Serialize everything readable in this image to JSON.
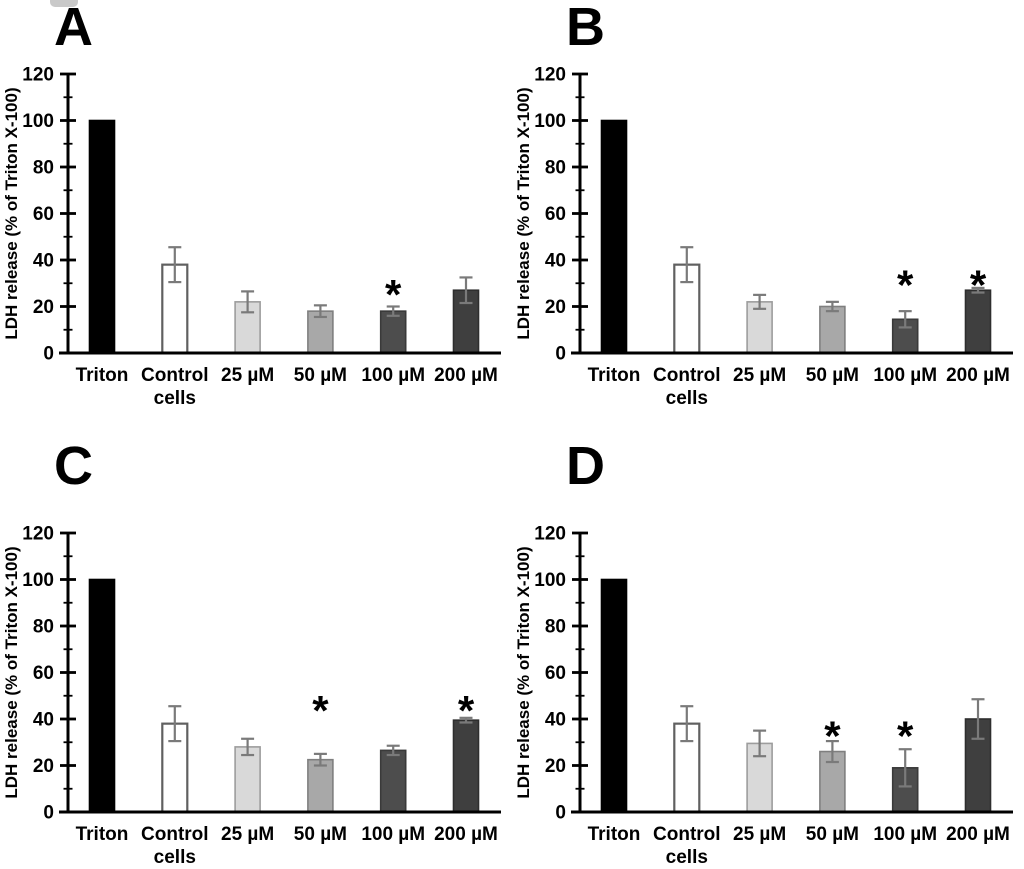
{
  "figure": {
    "background": "#ffffff",
    "panel_letters": [
      "A",
      "B",
      "C",
      "D"
    ]
  },
  "chart_data": [
    {
      "type": "bar",
      "panel_label": "A",
      "ylabel": "LDH release (% of Triton X-100)",
      "categories": [
        "Triton",
        "Control\ncells",
        "25 µM",
        "50 µM",
        "100 µM",
        "200 µM"
      ],
      "values": [
        100,
        38,
        22,
        18,
        18,
        27
      ],
      "errors": [
        0,
        7.5,
        4.5,
        2.5,
        2,
        5.5
      ],
      "significance_asterisks": [
        null,
        null,
        null,
        null,
        28,
        null
      ],
      "ylim": [
        0,
        120
      ],
      "ytick_step": 20,
      "ytick_minor_step": 10,
      "grid": false,
      "legend": false
    },
    {
      "type": "bar",
      "panel_label": "B",
      "ylabel": "LDH release (% of Triton X-100)",
      "categories": [
        "Triton",
        "Control\ncells",
        "25 µM",
        "50 µM",
        "100 µM",
        "200 µM"
      ],
      "values": [
        100,
        38,
        22,
        20,
        14.5,
        27
      ],
      "errors": [
        0,
        7.5,
        3,
        2,
        3.5,
        1
      ],
      "significance_asterisks": [
        null,
        null,
        null,
        null,
        32,
        32
      ],
      "ylim": [
        0,
        120
      ],
      "ytick_step": 20,
      "ytick_minor_step": 10,
      "grid": false,
      "legend": false
    },
    {
      "type": "bar",
      "panel_label": "C",
      "ylabel": "LDH release (% of Triton X-100)",
      "categories": [
        "Triton",
        "Control\ncells",
        "25 µM",
        "50 µM",
        "100 µM",
        "200 µM"
      ],
      "values": [
        100,
        38,
        28,
        22.5,
        26.5,
        39.5
      ],
      "errors": [
        0,
        7.5,
        3.5,
        2.5,
        2,
        1
      ],
      "significance_asterisks": [
        null,
        null,
        null,
        46.5,
        null,
        46.5
      ],
      "ylim": [
        0,
        120
      ],
      "ytick_step": 20,
      "ytick_minor_step": 10,
      "grid": false,
      "legend": false
    },
    {
      "type": "bar",
      "panel_label": "D",
      "ylabel": "LDH release (% of Triton X-100)",
      "categories": [
        "Triton",
        "Control\ncells",
        "25 µM",
        "50 µM",
        "100 µM",
        "200 µM"
      ],
      "values": [
        100,
        38,
        29.5,
        26,
        19,
        40
      ],
      "errors": [
        0,
        7.5,
        5.5,
        4.5,
        8,
        8.5
      ],
      "significance_asterisks": [
        null,
        null,
        null,
        35.5,
        35.5,
        null
      ],
      "ylim": [
        0,
        120
      ],
      "ytick_step": 20,
      "ytick_minor_step": 10,
      "grid": false,
      "legend": false
    }
  ],
  "style": {
    "sig_marker": "*",
    "bar_fills": [
      "#000000",
      "#ffffff",
      "#d9d9d9",
      "#a8a8a8",
      "#4d4d4d",
      "#3f3f3f"
    ],
    "bar_borders": [
      "#000000",
      "#606060",
      "#9d9d9d",
      "#7f7f7f",
      "#3a3a3a",
      "#2e2e2e"
    ],
    "error_bar_color": "#7a7a7a",
    "axis_color": "#000000",
    "text_color": "#000000"
  }
}
